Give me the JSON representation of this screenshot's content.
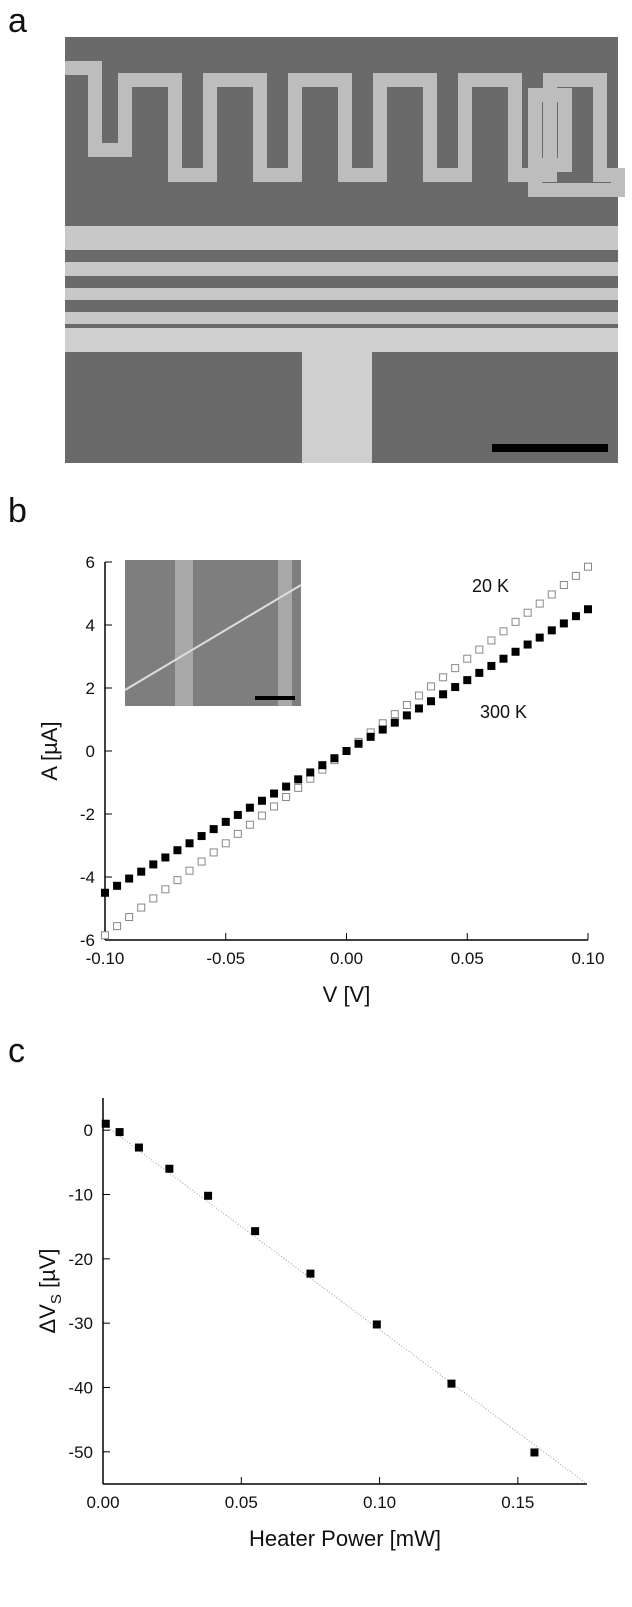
{
  "panels": [
    "a",
    "b",
    "c"
  ],
  "chart_data": [
    {
      "type": "scatter",
      "xlabel": "V [V]",
      "ylabel": "A [µA]",
      "xlim": [
        -0.1,
        0.1
      ],
      "ylim": [
        -6,
        6
      ],
      "xticks": [
        {
          "value": -0.1,
          "label": "-0.10"
        },
        {
          "value": -0.05,
          "label": "-0.05"
        },
        {
          "value": 0,
          "label": "0.00"
        },
        {
          "value": 0.05,
          "label": "0.05"
        },
        {
          "value": 0.1,
          "label": "0.10"
        }
      ],
      "yticks": [
        -6,
        -4,
        -2,
        0,
        2,
        4,
        6
      ],
      "x": [
        -0.1,
        -0.095,
        -0.09,
        -0.085,
        -0.08,
        -0.075,
        -0.07,
        -0.065,
        -0.06,
        -0.055,
        -0.05,
        -0.045,
        -0.04,
        -0.035,
        -0.03,
        -0.025,
        -0.02,
        -0.015,
        -0.01,
        -0.005,
        0,
        0.005,
        0.01,
        0.015,
        0.02,
        0.025,
        0.03,
        0.035,
        0.04,
        0.045,
        0.05,
        0.055,
        0.06,
        0.065,
        0.07,
        0.075,
        0.08,
        0.085,
        0.09,
        0.095,
        0.1
      ],
      "series": [
        {
          "name": "20 K",
          "color": "#888888",
          "marker": "open",
          "values": [
            -5.85,
            -5.56,
            -5.27,
            -4.97,
            -4.68,
            -4.39,
            -4.1,
            -3.8,
            -3.51,
            -3.22,
            -2.93,
            -2.63,
            -2.34,
            -2.05,
            -1.76,
            -1.46,
            -1.17,
            -0.88,
            -0.59,
            -0.29,
            0,
            0.29,
            0.59,
            0.88,
            1.17,
            1.46,
            1.76,
            2.05,
            2.34,
            2.63,
            2.93,
            3.22,
            3.51,
            3.8,
            4.1,
            4.39,
            4.68,
            4.97,
            5.27,
            5.56,
            5.85
          ]
        },
        {
          "name": "300 K",
          "color": "#000000",
          "marker": "filled",
          "values": [
            -4.5,
            -4.28,
            -4.05,
            -3.83,
            -3.6,
            -3.38,
            -3.15,
            -2.93,
            -2.7,
            -2.48,
            -2.25,
            -2.03,
            -1.8,
            -1.58,
            -1.35,
            -1.13,
            -0.9,
            -0.68,
            -0.45,
            -0.23,
            0,
            0.23,
            0.45,
            0.68,
            0.9,
            1.13,
            1.35,
            1.58,
            1.8,
            2.03,
            2.25,
            2.48,
            2.7,
            2.93,
            3.15,
            3.38,
            3.6,
            3.83,
            4.05,
            4.28,
            4.5
          ]
        }
      ]
    },
    {
      "type": "scatter",
      "xlabel": "Heater Power [mW]",
      "ylabel": {
        "main": "ΔV",
        "sub": "S",
        "unit": " [µV]"
      },
      "xlim": [
        0,
        0.175
      ],
      "ylim": [
        -55,
        5
      ],
      "xticks": [
        {
          "value": 0,
          "label": "0.00"
        },
        {
          "value": 0.05,
          "label": "0.05"
        },
        {
          "value": 0.1,
          "label": "0.10"
        },
        {
          "value": 0.15,
          "label": "0.15"
        }
      ],
      "yticks": [
        0,
        -10,
        -20,
        -30,
        -40,
        -50
      ],
      "x": [
        0.001,
        0.006,
        0.013,
        0.024,
        0.038,
        0.055,
        0.075,
        0.099,
        0.126,
        0.156
      ],
      "series": [
        {
          "color": "#000000",
          "marker": "filled",
          "values": [
            1,
            -0.3,
            -2.7,
            -6,
            -10.2,
            -15.7,
            -22.3,
            -30.2,
            -39.4,
            -50.1
          ]
        }
      ],
      "trend": {
        "x": [
          0,
          0.175
        ],
        "y": [
          1,
          -55
        ]
      }
    }
  ]
}
